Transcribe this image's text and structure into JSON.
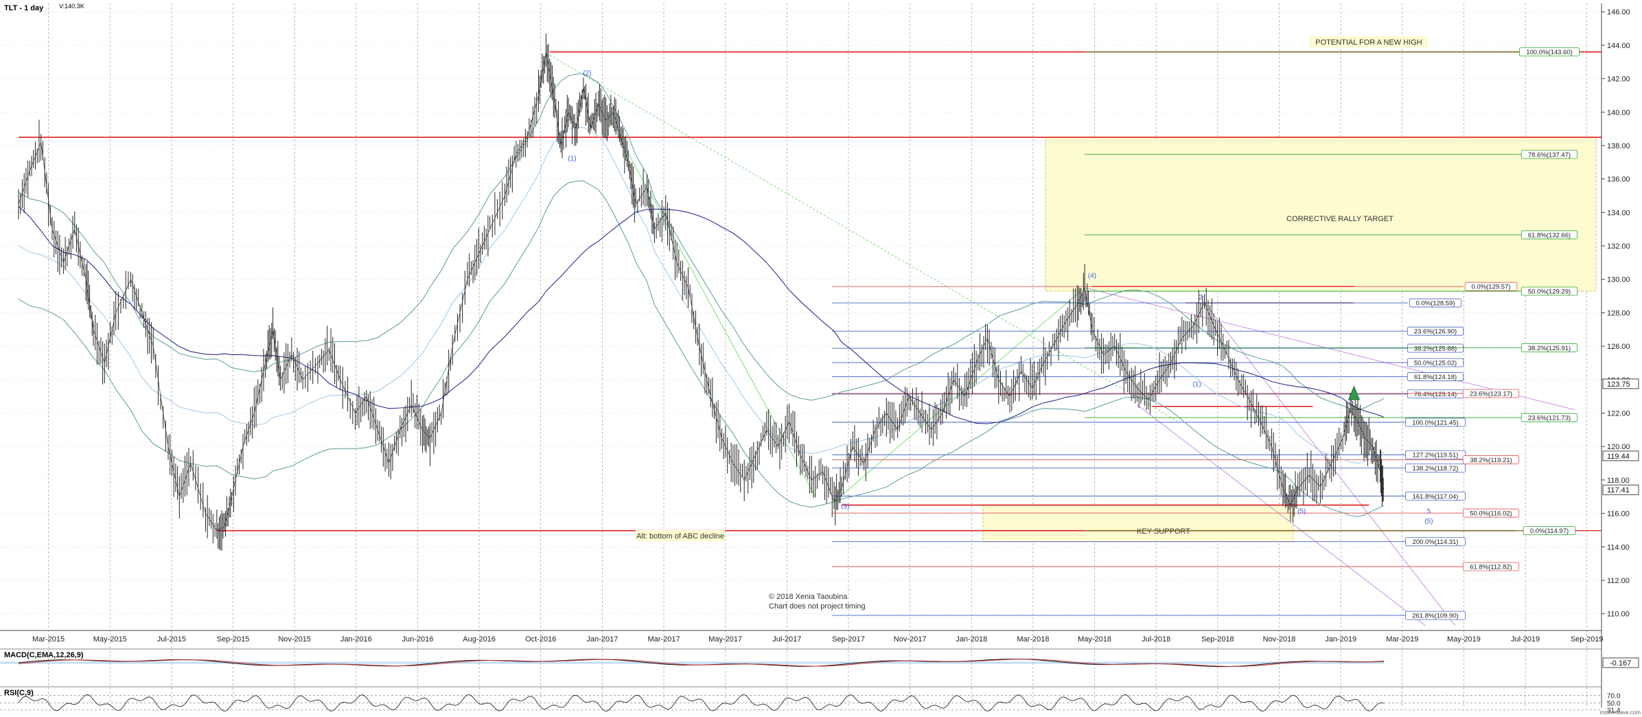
{
  "header": {
    "symbol": "TLT - 1 day",
    "volume": "V:140.3K"
  },
  "chart_data": {
    "type": "line",
    "title": "TLT - 1 day",
    "x_axis": {
      "labels": [
        "Mar-2015",
        "May-2015",
        "Jul-2015",
        "Sep-2015",
        "Nov-2015",
        "Jan-2016",
        "Jun-2016",
        "Aug-2016",
        "Oct-2016",
        "Jan-2017",
        "Mar-2017",
        "May-2017",
        "Jul-2017",
        "Sep-2017",
        "Nov-2017",
        "Jan-2018",
        "Mar-2018",
        "May-2018",
        "Jul-2018",
        "Sep-2018",
        "Nov-2018",
        "Jan-2019",
        "Mar-2019",
        "May-2019",
        "Jul-2019",
        "Sep-2019"
      ]
    },
    "y_axis": {
      "range": [
        109,
        146.5
      ],
      "ticks": [
        "146.00",
        "144.00",
        "142.00",
        "140.00",
        "138.00",
        "136.00",
        "134.00",
        "132.00",
        "130.00",
        "128.00",
        "126.00",
        "124.00",
        "122.00",
        "120.00",
        "118.00",
        "116.00",
        "114.00",
        "112.00",
        "110.00"
      ],
      "badges": [
        {
          "value": 123.75,
          "label": "123.75"
        },
        {
          "value": 119.44,
          "label": "119.44"
        },
        {
          "value": 117.41,
          "label": "117.41"
        }
      ]
    },
    "price_series": {
      "name": "",
      "points": [
        [
          0,
          134.5
        ],
        [
          0.3,
          136.5
        ],
        [
          0.6,
          138.2
        ],
        [
          0.9,
          133
        ],
        [
          1.2,
          131
        ],
        [
          1.5,
          133
        ],
        [
          1.8,
          130
        ],
        [
          2,
          127
        ],
        [
          2.3,
          125
        ],
        [
          2.6,
          128
        ],
        [
          3,
          130
        ],
        [
          3.3,
          128
        ],
        [
          3.6,
          126
        ],
        [
          4,
          120
        ],
        [
          4.3,
          117
        ],
        [
          4.6,
          119
        ],
        [
          5,
          116
        ],
        [
          5.3,
          115
        ],
        [
          5.5,
          115.2
        ],
        [
          5.7,
          117
        ],
        [
          6,
          120
        ],
        [
          6.3,
          122
        ],
        [
          6.6,
          125
        ],
        [
          6.8,
          127
        ],
        [
          7,
          124
        ],
        [
          7.3,
          125.5
        ],
        [
          7.6,
          124
        ],
        [
          8,
          125
        ],
        [
          8.3,
          125.8
        ],
        [
          8.6,
          124
        ],
        [
          9,
          122
        ],
        [
          9.3,
          123
        ],
        [
          9.6,
          121
        ],
        [
          9.9,
          119
        ],
        [
          10.2,
          121
        ],
        [
          10.5,
          122.5
        ],
        [
          10.8,
          121
        ],
        [
          11,
          120.5
        ],
        [
          11.3,
          122
        ],
        [
          11.6,
          126
        ],
        [
          12,
          130
        ],
        [
          12.3,
          131.5
        ],
        [
          12.6,
          133
        ],
        [
          13,
          135
        ],
        [
          13.3,
          137.5
        ],
        [
          13.6,
          138.5
        ],
        [
          13.9,
          141
        ],
        [
          14.1,
          143.6
        ],
        [
          14.3,
          141
        ],
        [
          14.5,
          138
        ],
        [
          14.7,
          140
        ],
        [
          14.9,
          139
        ],
        [
          15.1,
          141.5
        ],
        [
          15.3,
          139
        ],
        [
          15.5,
          140.5
        ],
        [
          15.7,
          139.5
        ],
        [
          15.9,
          140
        ],
        [
          16.1,
          138.5
        ],
        [
          16.3,
          137
        ],
        [
          16.5,
          134.5
        ],
        [
          16.8,
          135.5
        ],
        [
          17,
          133
        ],
        [
          17.3,
          134
        ],
        [
          17.6,
          131
        ],
        [
          17.9,
          129.5
        ],
        [
          18.2,
          126
        ],
        [
          18.5,
          123
        ],
        [
          18.8,
          120.5
        ],
        [
          19.1,
          119
        ],
        [
          19.4,
          118
        ],
        [
          19.7,
          119.5
        ],
        [
          20,
          121
        ],
        [
          20.3,
          120
        ],
        [
          20.6,
          121.5
        ],
        [
          20.9,
          119.5
        ],
        [
          21.2,
          118
        ],
        [
          21.5,
          118.5
        ],
        [
          21.8,
          116.7
        ],
        [
          22,
          117.5
        ],
        [
          22.3,
          120
        ],
        [
          22.6,
          119
        ],
        [
          22.9,
          121
        ],
        [
          23.2,
          122
        ],
        [
          23.5,
          121
        ],
        [
          23.8,
          123
        ],
        [
          24.1,
          122
        ],
        [
          24.4,
          121
        ],
        [
          24.7,
          122
        ],
        [
          25,
          124
        ],
        [
          25.3,
          123
        ],
        [
          25.6,
          125
        ],
        [
          25.9,
          126.5
        ],
        [
          26.2,
          124
        ],
        [
          26.5,
          123
        ],
        [
          26.8,
          124.5
        ],
        [
          27.1,
          123.5
        ],
        [
          27.4,
          125
        ],
        [
          27.7,
          126.2
        ],
        [
          28,
          127.5
        ],
        [
          28.3,
          128.5
        ],
        [
          28.5,
          129.5
        ],
        [
          28.7,
          127
        ],
        [
          29,
          125.5
        ],
        [
          29.3,
          126
        ],
        [
          29.6,
          124.5
        ],
        [
          29.9,
          123.5
        ],
        [
          30.2,
          122.8
        ],
        [
          30.5,
          124
        ],
        [
          30.8,
          125
        ],
        [
          31.1,
          126.5
        ],
        [
          31.4,
          127.2
        ],
        [
          31.7,
          128.6
        ],
        [
          32,
          127
        ],
        [
          32.3,
          125.5
        ],
        [
          32.6,
          124
        ],
        [
          32.9,
          122.8
        ],
        [
          33.2,
          121.5
        ],
        [
          33.5,
          120
        ],
        [
          33.8,
          117.5
        ],
        [
          34,
          116.5
        ],
        [
          34.2,
          117.5
        ],
        [
          34.5,
          118.3
        ],
        [
          34.8,
          117.6
        ],
        [
          35.1,
          119
        ],
        [
          35.4,
          120.5
        ],
        [
          35.6,
          122.2
        ],
        [
          35.8,
          121.5
        ],
        [
          36,
          120.5
        ],
        [
          36.2,
          120
        ],
        [
          36.4,
          118.5
        ],
        [
          36.5,
          117.41
        ]
      ]
    },
    "fib_levels": [
      {
        "label": "100.0%(143.60)",
        "value": 143.6,
        "group": "green"
      },
      {
        "label": "78.6%(137.47)",
        "value": 137.47,
        "group": "green"
      },
      {
        "label": "61.8%(132.66)",
        "value": 132.66,
        "group": "green"
      },
      {
        "label": "0.0%(129.57)",
        "value": 129.57,
        "group": "red"
      },
      {
        "label": "50.0%(129.29)",
        "value": 129.29,
        "group": "green"
      },
      {
        "label": "0.0%(128.59)",
        "value": 128.59,
        "group": "blue"
      },
      {
        "label": "23.6%(126.90)",
        "value": 126.9,
        "group": "blue"
      },
      {
        "label": "38.2%(125.88)",
        "value": 125.88,
        "group": "blue"
      },
      {
        "label": "38.2%(125.91)",
        "value": 125.91,
        "group": "green"
      },
      {
        "label": "50.0%(125.02)",
        "value": 125.02,
        "group": "blue"
      },
      {
        "label": "61.8%(124.18)",
        "value": 124.18,
        "group": "blue"
      },
      {
        "label": "76.4%(123.14)",
        "value": 123.14,
        "group": "blue"
      },
      {
        "label": "23.6%(123.17)",
        "value": 123.17,
        "group": "red"
      },
      {
        "label": "23.6%(121.73)",
        "value": 121.73,
        "group": "green"
      },
      {
        "label": "100.0%(121.45)",
        "value": 121.45,
        "group": "blue"
      },
      {
        "label": "127.2%(119.51)",
        "value": 119.51,
        "group": "blue"
      },
      {
        "label": "38.2%(119.21)",
        "value": 119.21,
        "group": "red"
      },
      {
        "label": "138.2%(118.72)",
        "value": 118.72,
        "group": "blue"
      },
      {
        "label": "161.8%(117.04)",
        "value": 117.04,
        "group": "blue"
      },
      {
        "label": "50.0%(116.02)",
        "value": 116.02,
        "group": "red"
      },
      {
        "label": "0.0%(114.97)",
        "value": 114.97,
        "group": "green"
      },
      {
        "label": "200.0%(114.31)",
        "value": 114.31,
        "group": "blue"
      },
      {
        "label": "61.8%(112.82)",
        "value": 112.82,
        "group": "red"
      },
      {
        "label": "261.8%(109.90)",
        "value": 109.9,
        "group": "blue"
      }
    ],
    "horizontal_lines": [
      {
        "value": 143.6,
        "x_start": 14.2
      },
      {
        "value": 138.5,
        "x_start": 0
      },
      {
        "value": 129.57,
        "x_start": 28.7
      },
      {
        "value": 122.4,
        "x_start": 30.3
      },
      {
        "value": 116.5,
        "x_start": 22
      },
      {
        "value": 114.97,
        "x_start": 5.3
      }
    ],
    "zones": [
      {
        "label": "CORRECTIVE RALLY TARGET",
        "y_top": 138.5,
        "y_bottom": 129.29
      },
      {
        "label": "KEY SUPPORT",
        "y_top": 116.5,
        "y_bottom": 114.3
      }
    ],
    "annotations": [
      {
        "text": "POTENTIAL FOR A NEW HIGH"
      },
      {
        "text": "Alt: bottom of ABC decline"
      },
      {
        "text": "© 2018 Xenia Taoubina"
      },
      {
        "text": "Chart does not project timing"
      }
    ],
    "wave_labels": [
      "(2)",
      "(1)",
      "(3)",
      "(4)",
      "2",
      "(1)",
      "(5)",
      "(5)",
      "5"
    ],
    "indicators": [
      {
        "name": "MACD(C,EMA,12,26,9)",
        "value_label": "-0.167"
      },
      {
        "name": "RSI(C,9)",
        "levels": [
          "70.0",
          "50.0",
          "31.4"
        ]
      }
    ],
    "footer": "motivewave.com",
    "grid": true,
    "legend": "none"
  }
}
